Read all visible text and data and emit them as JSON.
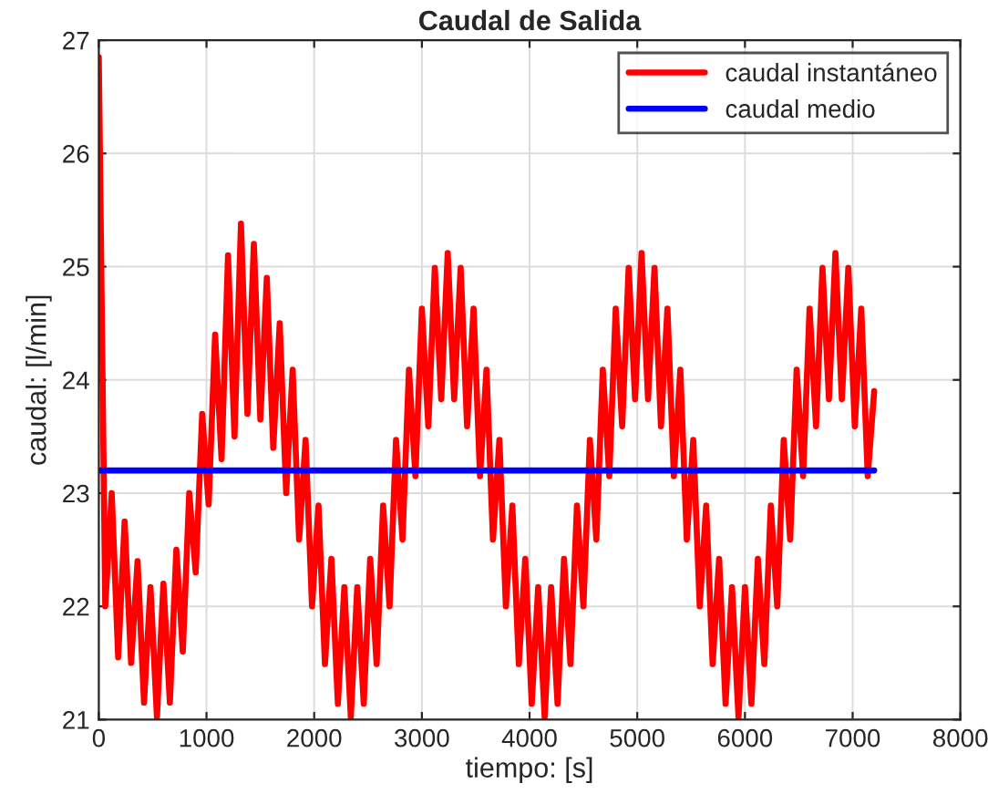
{
  "chart_data": {
    "type": "line",
    "title": "Caudal de Salida",
    "xlabel": "tiempo: [s]",
    "ylabel": "caudal: [l/min]",
    "xlim": [
      0,
      8000
    ],
    "xticks": [
      0,
      1000,
      2000,
      3000,
      4000,
      5000,
      6000,
      7000,
      8000
    ],
    "ylim": [
      21,
      27
    ],
    "yticks": [
      21,
      22,
      23,
      24,
      25,
      26,
      27
    ],
    "grid": true,
    "legend": "top right",
    "line_style": "solid",
    "marker": "none",
    "series": [
      {
        "name": "caudal instantáneo",
        "color": "#ff0000",
        "x": [
          0,
          60,
          120,
          180,
          240,
          300,
          360,
          420,
          480,
          540,
          600,
          660,
          720,
          780,
          840,
          900,
          960,
          1020,
          1080,
          1140,
          1200,
          1260,
          1320,
          1380,
          1440,
          1500,
          1560,
          1620,
          1680,
          1740,
          1800,
          1860,
          1920,
          1980,
          2040,
          2100,
          2160,
          2220,
          2280,
          2340,
          2400,
          2460,
          2520,
          2580,
          2640,
          2700,
          2760,
          2820,
          2880,
          2940,
          3000,
          3060,
          3120,
          3180,
          3240,
          3300,
          3360,
          3420,
          3480,
          3540,
          3600,
          3660,
          3720,
          3780,
          3840,
          3900,
          3960,
          4020,
          4080,
          4140,
          4200,
          4260,
          4320,
          4380,
          4440,
          4500,
          4560,
          4620,
          4680,
          4740,
          4800,
          4860,
          4920,
          4980,
          5040,
          5100,
          5160,
          5220,
          5280,
          5340,
          5400,
          5460,
          5520,
          5580,
          5640,
          5700,
          5760,
          5820,
          5880,
          5940,
          6000,
          6060,
          6120,
          6180,
          6240,
          6300,
          6360,
          6420,
          6480,
          6540,
          6600,
          6660,
          6720,
          6780,
          6840,
          6900,
          6960,
          7020,
          7080,
          7140,
          7200
        ],
        "values": [
          26.85,
          22.0,
          23.0,
          21.55,
          22.75,
          21.5,
          22.4,
          21.15,
          22.17,
          21.02,
          22.2,
          21.15,
          22.5,
          21.6,
          23.0,
          22.3,
          23.7,
          22.9,
          24.4,
          23.3,
          25.1,
          23.5,
          25.38,
          23.7,
          25.2,
          23.65,
          24.9,
          23.4,
          24.5,
          23.0,
          24.09,
          22.59,
          23.47,
          22.0,
          22.89,
          21.49,
          22.42,
          21.14,
          22.17,
          21.02,
          22.17,
          21.14,
          22.42,
          21.49,
          22.89,
          22.0,
          23.47,
          22.59,
          24.09,
          23.15,
          24.63,
          23.59,
          24.99,
          23.83,
          25.12,
          23.83,
          24.99,
          23.59,
          24.63,
          23.15,
          24.09,
          22.59,
          23.47,
          22.0,
          22.89,
          21.49,
          22.42,
          21.14,
          22.17,
          21.02,
          22.17,
          21.14,
          22.42,
          21.49,
          22.89,
          22.0,
          23.47,
          22.59,
          24.09,
          23.15,
          24.63,
          23.59,
          24.99,
          23.83,
          25.12,
          23.83,
          24.99,
          23.59,
          24.63,
          23.15,
          24.09,
          22.59,
          23.47,
          22.0,
          22.89,
          21.49,
          22.42,
          21.14,
          22.17,
          21.02,
          22.17,
          21.14,
          22.42,
          21.49,
          22.89,
          22.0,
          23.47,
          22.59,
          24.09,
          23.15,
          24.63,
          23.59,
          24.99,
          23.83,
          25.12,
          23.83,
          24.99,
          23.59,
          24.63,
          23.15,
          23.9
        ]
      },
      {
        "name": "caudal medio",
        "color": "#0000ff",
        "x": [
          0,
          7200
        ],
        "values": [
          23.2,
          23.2
        ]
      }
    ]
  }
}
